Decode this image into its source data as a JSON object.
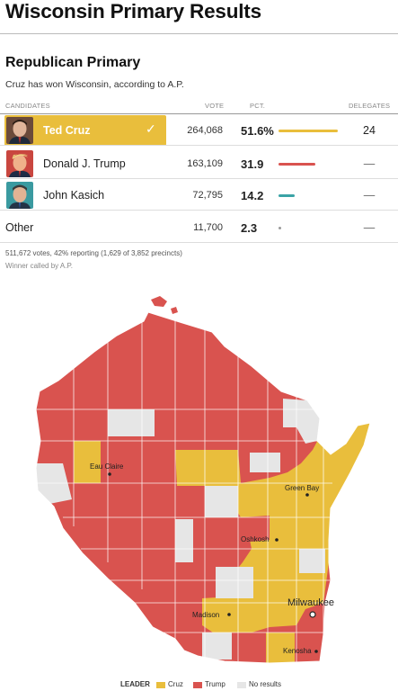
{
  "header": {
    "title": "Wisconsin Primary Results"
  },
  "section": {
    "title": "Republican Primary",
    "subtitle": "Cruz has won Wisconsin, according to A.P."
  },
  "table": {
    "columns": {
      "candidates": "CANDIDATES",
      "vote": "VOTE",
      "pct": "PCT.",
      "delegates": "DELEGATES"
    },
    "rows": [
      {
        "name": "Ted Cruz",
        "vote": "264,068",
        "pct": "51.6%",
        "pct_value": 51.6,
        "delegates": "24",
        "color": "#e9be3c",
        "winner": true,
        "check": "✓",
        "photo_icon": "ted-cruz-photo"
      },
      {
        "name": "Donald J. Trump",
        "vote": "163,109",
        "pct": "31.9",
        "pct_value": 31.9,
        "delegates": "—",
        "color": "#d9534f",
        "winner": false,
        "photo_icon": "donald-trump-photo"
      },
      {
        "name": "John Kasich",
        "vote": "72,795",
        "pct": "14.2",
        "pct_value": 14.2,
        "delegates": "—",
        "color": "#3aa3a6",
        "winner": false,
        "photo_icon": "john-kasich-photo"
      },
      {
        "name": "Other",
        "vote": "11,700",
        "pct": "2.3",
        "pct_value": 2.3,
        "delegates": "—",
        "color": "#999999",
        "winner": false
      }
    ]
  },
  "footnotes": {
    "reporting": "511,672 votes, 42% reporting (1,629 of 3,852 precincts)",
    "called": "Winner called by A.P."
  },
  "map": {
    "colors": {
      "cruz": "#e9be3c",
      "trump": "#d9534f",
      "no_results": "#e6e6e6"
    },
    "cities": [
      "Eau Claire",
      "Green Bay",
      "Oshkosh",
      "Madison",
      "Milwaukee",
      "Kenosha"
    ]
  },
  "legend": {
    "title": "LEADER",
    "items": [
      "Cruz",
      "Trump",
      "No results"
    ]
  }
}
